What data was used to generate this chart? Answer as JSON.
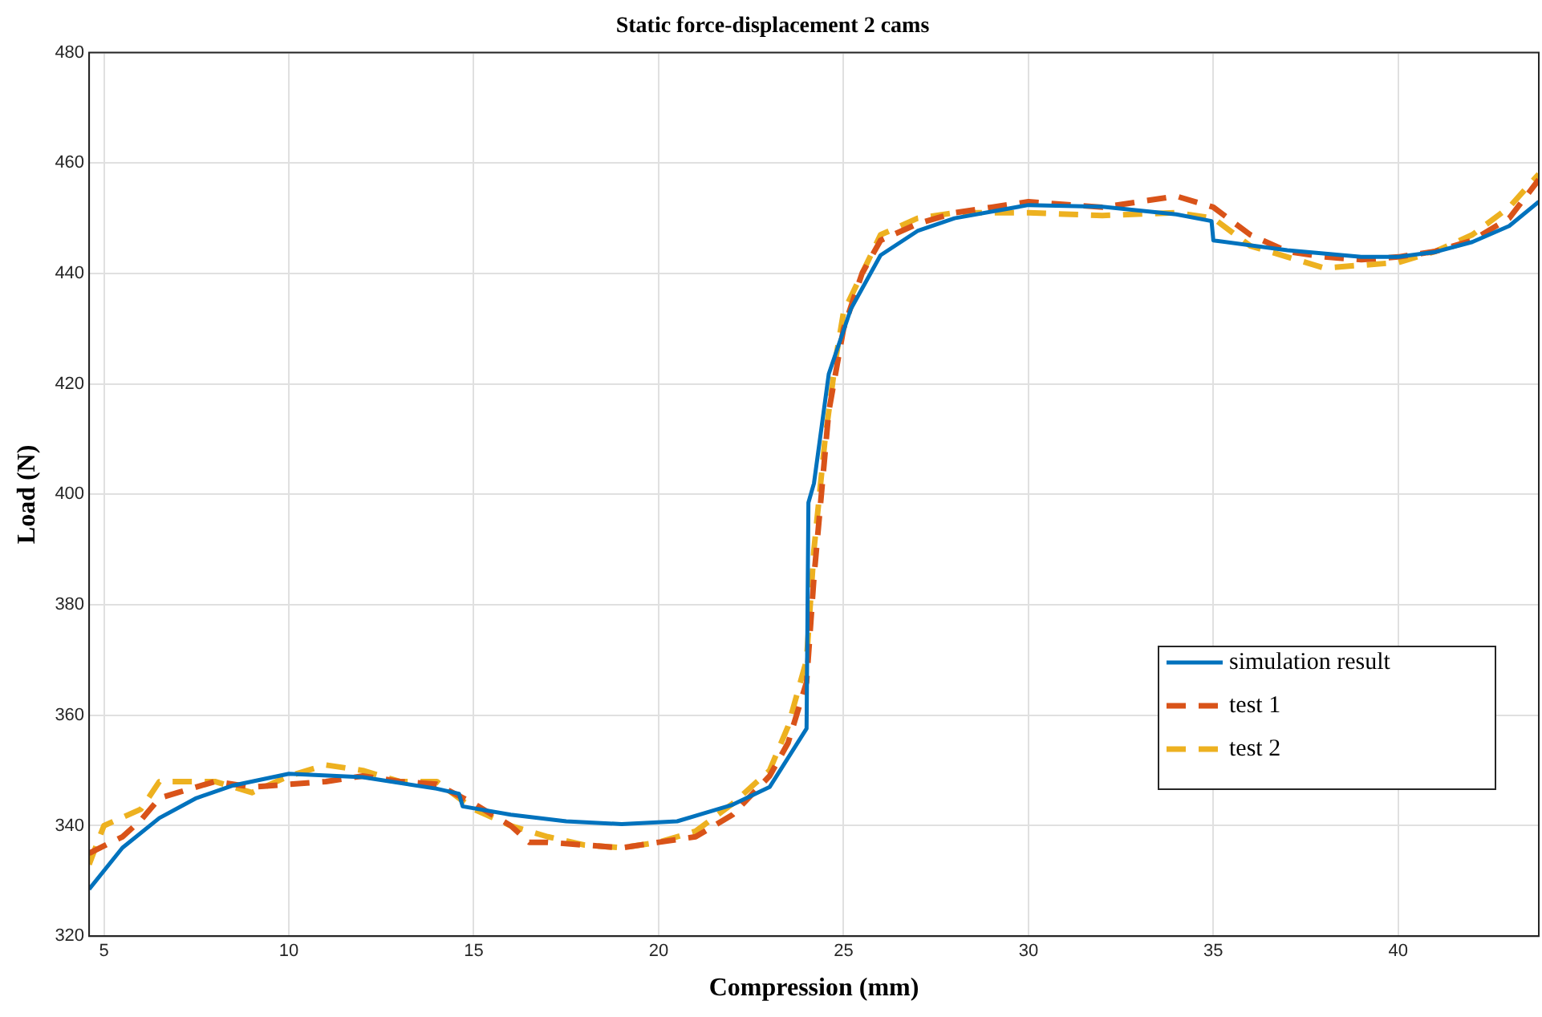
{
  "chart_data": {
    "type": "line",
    "title": "Static force-displacement 2 cams",
    "xlabel": "Compression (mm)",
    "ylabel": "Load (N)",
    "xlim": [
      4.6,
      43.8
    ],
    "xticks": [
      5,
      10,
      15,
      20,
      25,
      30,
      35,
      40
    ],
    "ylim": [
      320,
      480
    ],
    "yticks": [
      320,
      340,
      360,
      380,
      400,
      420,
      440,
      460,
      480
    ],
    "grid": true,
    "legend": "right",
    "marker": "none",
    "series": [
      {
        "name": "simulation result",
        "color": "#0072bd",
        "line_style": "solid",
        "x": [
          4.6,
          5.5,
          6.5,
          7.5,
          8.5,
          10,
          12,
          14,
          14.6,
          14.7,
          16,
          17.5,
          19,
          20.5,
          22,
          23,
          24,
          24.05,
          24.2,
          24.6,
          25.2,
          26,
          27,
          28,
          30,
          32,
          34,
          34.95,
          35.0,
          37,
          39,
          40,
          41,
          42,
          43,
          43.8
        ],
        "values": [
          328.5,
          336,
          341.4,
          345,
          347.3,
          349.4,
          348.8,
          346.7,
          345.8,
          343.5,
          342,
          340.8,
          340.3,
          340.8,
          343.8,
          347,
          357.6,
          398.5,
          402,
          421.8,
          433.6,
          443.3,
          447.7,
          450,
          452.4,
          452.1,
          450.7,
          449.5,
          446,
          444.2,
          443,
          443,
          443.9,
          445.7,
          448.6,
          453
        ]
      },
      {
        "name": "test 1",
        "color": "#d95319",
        "line_style": "dashed",
        "x": [
          4.6,
          5.5,
          6,
          6.5,
          7,
          8,
          9,
          10,
          11,
          12,
          13,
          14,
          15,
          16,
          16.5,
          17,
          18,
          19,
          20,
          21,
          22,
          23,
          23.5,
          24,
          24.2,
          24.4,
          24.6,
          25,
          25.5,
          26,
          27,
          28,
          29,
          30,
          31,
          32,
          33,
          34,
          35,
          36,
          37,
          38,
          39,
          40,
          41,
          42,
          43,
          43.8
        ],
        "values": [
          335,
          338,
          341,
          345,
          346,
          348,
          347,
          347.5,
          348,
          349,
          348,
          347.5,
          344,
          340,
          337,
          337,
          336.5,
          336,
          337,
          338,
          342,
          349,
          355,
          366,
          385,
          400,
          415,
          430,
          440,
          446,
          449,
          451,
          452,
          453,
          452.5,
          452,
          453,
          454,
          452,
          447,
          444,
          443,
          442.5,
          443,
          444,
          446,
          450,
          457
        ]
      },
      {
        "name": "test 2",
        "color": "#edb120",
        "line_style": "dashed",
        "x": [
          4.6,
          5,
          6,
          6.5,
          7,
          8,
          9,
          10,
          11,
          12,
          13,
          14,
          15,
          16,
          17,
          18,
          19,
          20,
          21,
          22,
          23,
          23.5,
          24,
          24.2,
          24.5,
          24.8,
          25,
          25.5,
          26,
          27,
          28,
          30,
          32,
          34,
          35,
          36,
          37,
          38,
          39,
          40,
          41,
          42,
          43,
          43.8
        ],
        "values": [
          333,
          340,
          343,
          348,
          348,
          348,
          346,
          349,
          351,
          350,
          348,
          348,
          343,
          340,
          338,
          336.5,
          336,
          337,
          339,
          344,
          350,
          358,
          370,
          390,
          410,
          425,
          433,
          440,
          447,
          450,
          451,
          451,
          450.5,
          451,
          450,
          445,
          443,
          441,
          441.5,
          442,
          444,
          447,
          452,
          458
        ]
      }
    ]
  }
}
